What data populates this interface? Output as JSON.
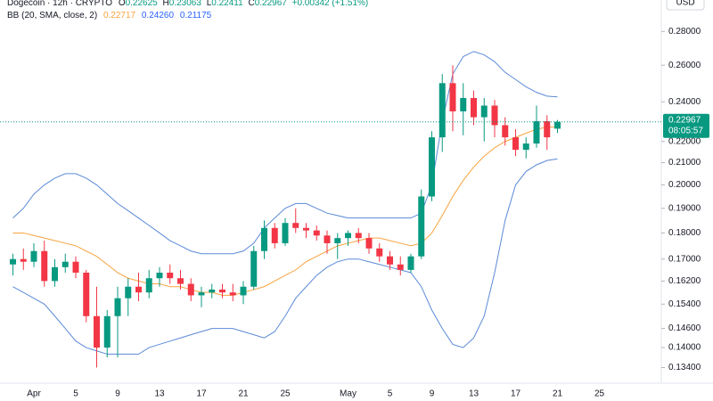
{
  "header": {
    "symbol": "Dogecoin · 12h · CRYPTO",
    "o_label": "O",
    "o": "0.22625",
    "h_label": "H",
    "h": "0.23063",
    "l_label": "L",
    "l": "0.22411",
    "c_label": "C",
    "c": "0.22967",
    "change": "+0.00342 (+1.51%)"
  },
  "indicator": {
    "label": "BB (20, SMA, close, 2)",
    "values": [
      "0.22717",
      "0.24260",
      "0.21175"
    ]
  },
  "currency": "USD",
  "chart_data": {
    "type": "candlestick",
    "log_scale": true,
    "up_color": "#089981",
    "down_color": "#f23645",
    "categories": [
      "Mar 30",
      "Mar 31",
      "Apr 1",
      "Apr 2",
      "Apr 3",
      "Apr 4",
      "Apr 5",
      "Apr 6",
      "Apr 7",
      "Apr 8",
      "Apr 9",
      "Apr 10",
      "Apr 11",
      "Apr 12",
      "Apr 13",
      "Apr 14",
      "Apr 15",
      "Apr 16",
      "Apr 17",
      "Apr 18",
      "Apr 19",
      "Apr 20",
      "Apr 21",
      "Apr 22",
      "Apr 23",
      "Apr 24",
      "Apr 25",
      "Apr 26",
      "Apr 27",
      "Apr 28",
      "Apr 29",
      "Apr 30",
      "May 1",
      "May 2",
      "May 3",
      "May 4",
      "May 5",
      "May 6",
      "May 7",
      "May 8",
      "May 9",
      "May 10",
      "May 11",
      "May 12",
      "May 13",
      "May 14",
      "May 15",
      "May 16",
      "May 17",
      "May 18",
      "May 19",
      "May 20",
      "May 21"
    ],
    "open": [
      0.168,
      0.17,
      0.169,
      0.173,
      0.162,
      0.167,
      0.169,
      0.165,
      0.15,
      0.14,
      0.15,
      0.156,
      0.16,
      0.158,
      0.163,
      0.165,
      0.163,
      0.161,
      0.157,
      0.158,
      0.159,
      0.158,
      0.157,
      0.16,
      0.173,
      0.182,
      0.176,
      0.184,
      0.182,
      0.181,
      0.179,
      0.176,
      0.178,
      0.18,
      0.178,
      0.174,
      0.171,
      0.168,
      0.166,
      0.171,
      0.195,
      0.222,
      0.25,
      0.235,
      0.242,
      0.232,
      0.238,
      0.228,
      0.222,
      0.216,
      0.219,
      0.23,
      0.22625
    ],
    "high": [
      0.172,
      0.174,
      0.176,
      0.177,
      0.17,
      0.172,
      0.171,
      0.166,
      0.16,
      0.152,
      0.16,
      0.163,
      0.165,
      0.166,
      0.167,
      0.168,
      0.166,
      0.163,
      0.16,
      0.161,
      0.161,
      0.161,
      0.162,
      0.175,
      0.185,
      0.184,
      0.186,
      0.19,
      0.184,
      0.183,
      0.181,
      0.18,
      0.181,
      0.182,
      0.18,
      0.176,
      0.173,
      0.171,
      0.172,
      0.198,
      0.225,
      0.255,
      0.26,
      0.25,
      0.246,
      0.242,
      0.241,
      0.232,
      0.226,
      0.222,
      0.238,
      0.233,
      0.23063
    ],
    "low": [
      0.164,
      0.166,
      0.167,
      0.16,
      0.16,
      0.165,
      0.163,
      0.148,
      0.134,
      0.137,
      0.137,
      0.15,
      0.155,
      0.156,
      0.16,
      0.161,
      0.159,
      0.155,
      0.153,
      0.156,
      0.156,
      0.155,
      0.154,
      0.159,
      0.17,
      0.174,
      0.175,
      0.18,
      0.178,
      0.177,
      0.172,
      0.17,
      0.175,
      0.176,
      0.172,
      0.169,
      0.166,
      0.164,
      0.165,
      0.17,
      0.193,
      0.215,
      0.225,
      0.223,
      0.228,
      0.22,
      0.222,
      0.218,
      0.213,
      0.212,
      0.217,
      0.216,
      0.22411
    ],
    "close": [
      0.17,
      0.169,
      0.173,
      0.162,
      0.167,
      0.169,
      0.165,
      0.15,
      0.14,
      0.15,
      0.156,
      0.16,
      0.158,
      0.163,
      0.165,
      0.163,
      0.161,
      0.157,
      0.158,
      0.159,
      0.158,
      0.157,
      0.16,
      0.173,
      0.182,
      0.176,
      0.184,
      0.182,
      0.181,
      0.179,
      0.176,
      0.178,
      0.18,
      0.178,
      0.174,
      0.171,
      0.168,
      0.166,
      0.171,
      0.195,
      0.222,
      0.25,
      0.235,
      0.242,
      0.232,
      0.238,
      0.228,
      0.222,
      0.216,
      0.219,
      0.23,
      0.222,
      0.22967
    ],
    "bands": [
      {
        "color": "#f7a440",
        "values": [
          0.18,
          0.18,
          0.179,
          0.178,
          0.177,
          0.176,
          0.175,
          0.173,
          0.171,
          0.168,
          0.165,
          0.163,
          0.162,
          0.161,
          0.161,
          0.16,
          0.16,
          0.159,
          0.158,
          0.158,
          0.157,
          0.157,
          0.158,
          0.159,
          0.16,
          0.162,
          0.164,
          0.166,
          0.169,
          0.171,
          0.173,
          0.175,
          0.176,
          0.177,
          0.178,
          0.178,
          0.177,
          0.176,
          0.175,
          0.176,
          0.18,
          0.187,
          0.195,
          0.202,
          0.208,
          0.213,
          0.217,
          0.22,
          0.222,
          0.224,
          0.226,
          0.227,
          0.22717
        ]
      },
      {
        "color": "#5b8ad8",
        "values": [
          0.186,
          0.19,
          0.196,
          0.2,
          0.203,
          0.205,
          0.205,
          0.203,
          0.2,
          0.196,
          0.192,
          0.189,
          0.186,
          0.183,
          0.18,
          0.177,
          0.175,
          0.173,
          0.172,
          0.172,
          0.172,
          0.172,
          0.173,
          0.176,
          0.182,
          0.186,
          0.19,
          0.192,
          0.192,
          0.19,
          0.188,
          0.187,
          0.186,
          0.186,
          0.186,
          0.186,
          0.186,
          0.186,
          0.186,
          0.188,
          0.2,
          0.23,
          0.255,
          0.265,
          0.268,
          0.266,
          0.262,
          0.256,
          0.252,
          0.248,
          0.245,
          0.243,
          0.2426
        ]
      },
      {
        "color": "#5b8ad8",
        "values": [
          0.16,
          0.158,
          0.156,
          0.154,
          0.15,
          0.146,
          0.142,
          0.14,
          0.139,
          0.138,
          0.138,
          0.138,
          0.138,
          0.14,
          0.141,
          0.142,
          0.143,
          0.144,
          0.145,
          0.146,
          0.146,
          0.146,
          0.145,
          0.144,
          0.143,
          0.145,
          0.15,
          0.156,
          0.16,
          0.164,
          0.167,
          0.169,
          0.17,
          0.17,
          0.169,
          0.168,
          0.167,
          0.166,
          0.165,
          0.16,
          0.152,
          0.146,
          0.141,
          0.14,
          0.143,
          0.15,
          0.165,
          0.185,
          0.2,
          0.206,
          0.209,
          0.211,
          0.21175
        ]
      }
    ],
    "ylim": [
      0.13,
      0.3
    ],
    "yticks": [
      {
        "value": 0.28,
        "label": "0.28000"
      },
      {
        "value": 0.26,
        "label": "0.26000"
      },
      {
        "value": 0.24,
        "label": "0.24000"
      },
      {
        "value": 0.22,
        "label": "0.22000"
      },
      {
        "value": 0.21,
        "label": "0.21000"
      },
      {
        "value": 0.2,
        "label": "0.20000"
      },
      {
        "value": 0.19,
        "label": "0.19000"
      },
      {
        "value": 0.18,
        "label": "0.18000"
      },
      {
        "value": 0.17,
        "label": "0.17000"
      },
      {
        "value": 0.162,
        "label": "0.16200"
      },
      {
        "value": 0.154,
        "label": "0.15400"
      },
      {
        "value": 0.146,
        "label": "0.14600"
      },
      {
        "value": 0.14,
        "label": "0.14000"
      },
      {
        "value": 0.134,
        "label": "0.13400"
      }
    ],
    "xticks": [
      {
        "value": "Apr 1",
        "label": "Apr"
      },
      {
        "value": "Apr 5",
        "label": "5"
      },
      {
        "value": "Apr 9",
        "label": "9"
      },
      {
        "value": "Apr 13",
        "label": "13"
      },
      {
        "value": "Apr 17",
        "label": "17"
      },
      {
        "value": "Apr 21",
        "label": "21"
      },
      {
        "value": "Apr 25",
        "label": "25"
      },
      {
        "value": "May 1",
        "label": "May"
      },
      {
        "value": "May 5",
        "label": "5"
      },
      {
        "value": "May 9",
        "label": "9"
      },
      {
        "value": "May 13",
        "label": "13"
      },
      {
        "value": "May 17",
        "label": "17"
      },
      {
        "value": "May 21",
        "label": "21"
      },
      {
        "value": "May 25",
        "label": "25"
      }
    ],
    "price_label": "0.22967",
    "countdown": "08:05:57"
  }
}
